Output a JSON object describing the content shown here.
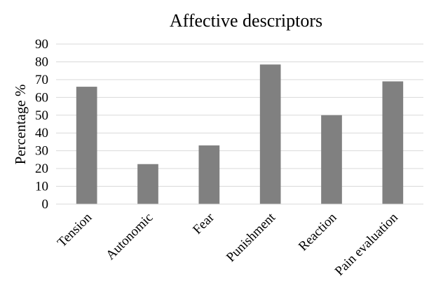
{
  "chart_data": {
    "type": "bar",
    "title": "Affective descriptors",
    "xlabel": "",
    "ylabel": "Percentage %",
    "categories": [
      "Tension",
      "Autonomic",
      "Fear",
      "Punishment",
      "Reaction",
      "Pain evaluation"
    ],
    "values": [
      66,
      22.5,
      33,
      78.5,
      50,
      69
    ],
    "ylim": [
      0,
      90
    ],
    "yticks": [
      0,
      10,
      20,
      30,
      40,
      50,
      60,
      70,
      80,
      90
    ],
    "grid": true,
    "legend": "none",
    "bar_color": "#808080"
  }
}
